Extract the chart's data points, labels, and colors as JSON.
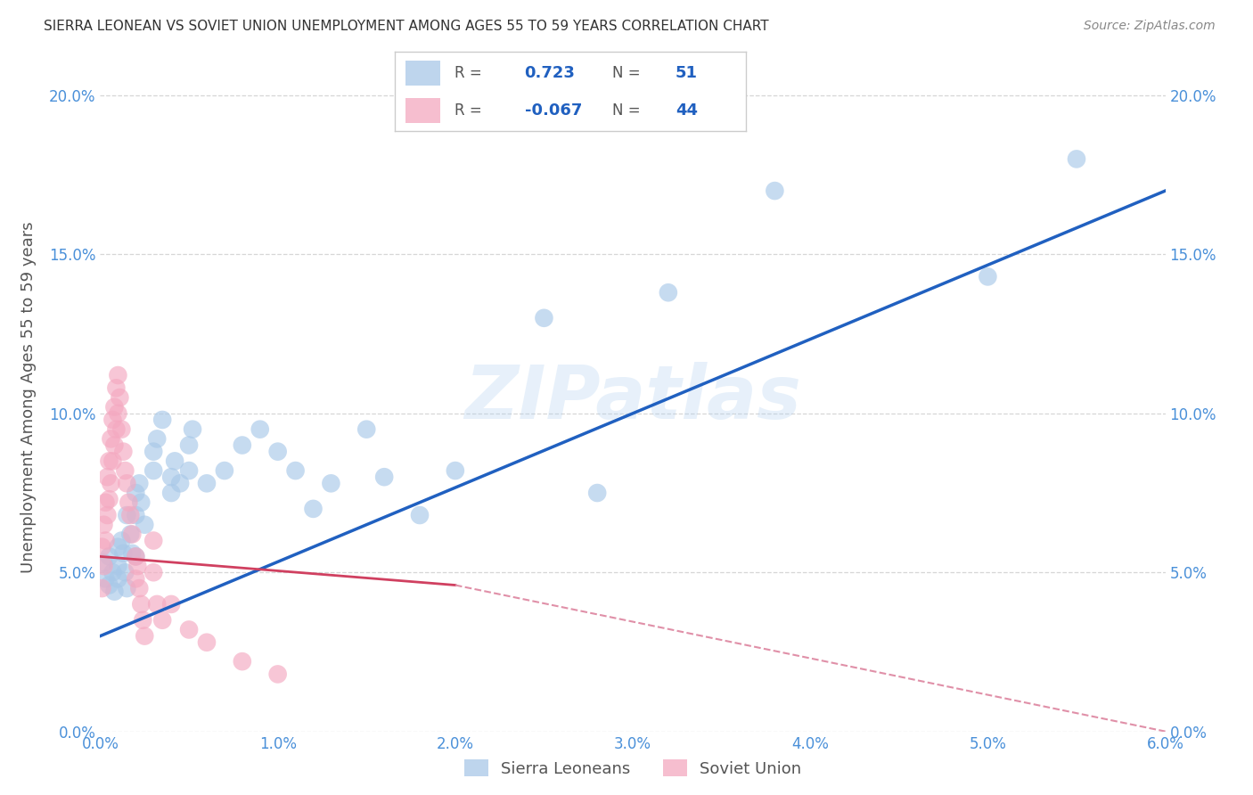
{
  "title": "SIERRA LEONEAN VS SOVIET UNION UNEMPLOYMENT AMONG AGES 55 TO 59 YEARS CORRELATION CHART",
  "source": "Source: ZipAtlas.com",
  "ylabel": "Unemployment Among Ages 55 to 59 years",
  "xlim": [
    0.0,
    0.06
  ],
  "ylim": [
    0.0,
    0.21
  ],
  "xticks": [
    0.0,
    0.01,
    0.02,
    0.03,
    0.04,
    0.05,
    0.06
  ],
  "xticklabels": [
    "0.0%",
    "1.0%",
    "2.0%",
    "3.0%",
    "4.0%",
    "5.0%",
    "6.0%"
  ],
  "yticks": [
    0.0,
    0.05,
    0.1,
    0.15,
    0.2
  ],
  "yticklabels": [
    "0.0%",
    "5.0%",
    "10.0%",
    "15.0%",
    "20.0%"
  ],
  "sl_color": "#a8c8e8",
  "su_color": "#f4a8c0",
  "sl_R": 0.723,
  "sl_N": 51,
  "su_R": -0.067,
  "su_N": 44,
  "watermark": "ZIPatlas",
  "legend_labels": [
    "Sierra Leoneans",
    "Soviet Union"
  ],
  "sl_scatter_x": [
    0.0002,
    0.0003,
    0.0005,
    0.0005,
    0.0007,
    0.0008,
    0.001,
    0.001,
    0.001,
    0.0012,
    0.0013,
    0.0014,
    0.0015,
    0.0015,
    0.0017,
    0.0018,
    0.002,
    0.002,
    0.002,
    0.0022,
    0.0023,
    0.0025,
    0.003,
    0.003,
    0.0032,
    0.0035,
    0.004,
    0.004,
    0.0042,
    0.0045,
    0.005,
    0.005,
    0.0052,
    0.006,
    0.007,
    0.008,
    0.009,
    0.01,
    0.011,
    0.012,
    0.013,
    0.015,
    0.016,
    0.018,
    0.02,
    0.025,
    0.028,
    0.032,
    0.038,
    0.05,
    0.055
  ],
  "sl_scatter_y": [
    0.053,
    0.048,
    0.055,
    0.046,
    0.05,
    0.044,
    0.058,
    0.052,
    0.048,
    0.06,
    0.056,
    0.05,
    0.068,
    0.045,
    0.062,
    0.056,
    0.075,
    0.068,
    0.055,
    0.078,
    0.072,
    0.065,
    0.088,
    0.082,
    0.092,
    0.098,
    0.08,
    0.075,
    0.085,
    0.078,
    0.09,
    0.082,
    0.095,
    0.078,
    0.082,
    0.09,
    0.095,
    0.088,
    0.082,
    0.07,
    0.078,
    0.095,
    0.08,
    0.068,
    0.082,
    0.13,
    0.075,
    0.138,
    0.17,
    0.143,
    0.18
  ],
  "su_scatter_x": [
    0.0001,
    0.0001,
    0.0002,
    0.0002,
    0.0003,
    0.0003,
    0.0004,
    0.0004,
    0.0005,
    0.0005,
    0.0006,
    0.0006,
    0.0007,
    0.0007,
    0.0008,
    0.0008,
    0.0009,
    0.0009,
    0.001,
    0.001,
    0.0011,
    0.0012,
    0.0013,
    0.0014,
    0.0015,
    0.0016,
    0.0017,
    0.0018,
    0.002,
    0.002,
    0.0021,
    0.0022,
    0.0023,
    0.0024,
    0.0025,
    0.003,
    0.003,
    0.0032,
    0.0035,
    0.004,
    0.005,
    0.006,
    0.008,
    0.01
  ],
  "su_scatter_y": [
    0.058,
    0.045,
    0.065,
    0.052,
    0.072,
    0.06,
    0.08,
    0.068,
    0.085,
    0.073,
    0.092,
    0.078,
    0.098,
    0.085,
    0.102,
    0.09,
    0.108,
    0.095,
    0.112,
    0.1,
    0.105,
    0.095,
    0.088,
    0.082,
    0.078,
    0.072,
    0.068,
    0.062,
    0.055,
    0.048,
    0.052,
    0.045,
    0.04,
    0.035,
    0.03,
    0.06,
    0.05,
    0.04,
    0.035,
    0.04,
    0.032,
    0.028,
    0.022,
    0.018
  ],
  "sl_line_color": "#2060c0",
  "su_line_solid_color": "#d04060",
  "su_line_dash_color": "#e090a8",
  "background_color": "#ffffff",
  "grid_color": "#cccccc",
  "title_color": "#333333",
  "axis_color": "#4a90d9",
  "ylabel_color": "#555555"
}
